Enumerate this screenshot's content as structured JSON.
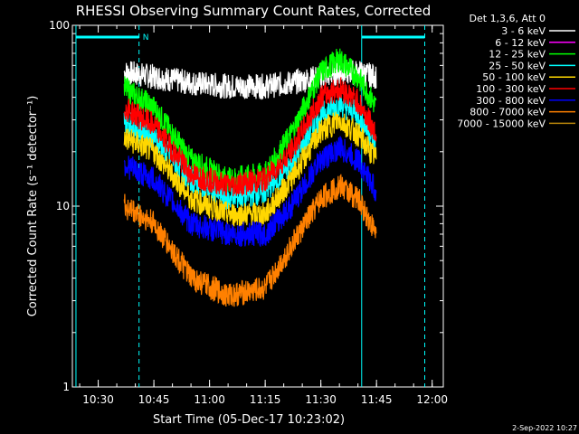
{
  "chart_data": {
    "type": "line",
    "title": "RHESSI Observing Summary Count Rates, Corrected",
    "xlabel": "Start Time (05-Dec-17 10:23:02)",
    "ylabel": "Corrected Count Rate (s⁻¹ detector⁻¹)",
    "y_scale": "log",
    "ylim": [
      1,
      100
    ],
    "xlim": [
      "10:23:02",
      "12:03:00"
    ],
    "x_tick_labels": [
      "10:30",
      "10:45",
      "11:00",
      "11:15",
      "11:30",
      "11:45",
      "12:00"
    ],
    "y_tick_labels": [
      "1",
      "10",
      "100"
    ],
    "legend_title": "Det 1,3,6, Att 0",
    "legend_position": "right",
    "grid": false,
    "markers": {
      "night_start": "10:24:00",
      "saa_end": "10:41:00",
      "night_end_label": "N",
      "night_2_start": "11:41:00",
      "saa_2_start": "11:58:00"
    },
    "x": [
      "10:37",
      "10:45",
      "10:55",
      "11:05",
      "11:15",
      "11:22",
      "11:30",
      "11:35",
      "11:40",
      "11:45"
    ],
    "series": [
      {
        "name": "3 - 6 keV",
        "color": "#ffffff",
        "values": [
          55,
          52,
          48,
          46,
          46,
          48,
          52,
          55,
          55,
          52
        ]
      },
      {
        "name": "6 - 12 keV",
        "color": "#ff00ff",
        "values": [
          null,
          null,
          null,
          null,
          null,
          null,
          null,
          null,
          null,
          null
        ]
      },
      {
        "name": "12 - 25 keV",
        "color": "#00ff00",
        "values": [
          45,
          35,
          18,
          14,
          15,
          25,
          55,
          65,
          52,
          35
        ]
      },
      {
        "name": "25 - 50 keV",
        "color": "#00ffff",
        "values": [
          30,
          24,
          14,
          11,
          12,
          17,
          32,
          37,
          32,
          22
        ]
      },
      {
        "name": "50 - 100 keV",
        "color": "#ffd700",
        "values": [
          24,
          20,
          11,
          9,
          9,
          14,
          26,
          30,
          25,
          18
        ]
      },
      {
        "name": "100 - 300 keV",
        "color": "#ff0000",
        "values": [
          35,
          28,
          15,
          13,
          14,
          20,
          40,
          45,
          38,
          25
        ]
      },
      {
        "name": "300 - 800 keV",
        "color": "#0000ff",
        "values": [
          17,
          14,
          8,
          7,
          7,
          10,
          18,
          21,
          18,
          12
        ]
      },
      {
        "name": "800 - 7000 keV",
        "color": "#ff8000",
        "values": [
          10,
          8,
          4,
          3.2,
          3.5,
          6,
          11,
          13,
          11,
          7
        ]
      },
      {
        "name": "7000 - 15000 keV",
        "color": "#b8860b",
        "values": [
          null,
          null,
          null,
          null,
          null,
          null,
          null,
          null,
          null,
          null
        ]
      }
    ]
  },
  "footer": {
    "timestamp": "2-Sep-2022 10:27"
  }
}
